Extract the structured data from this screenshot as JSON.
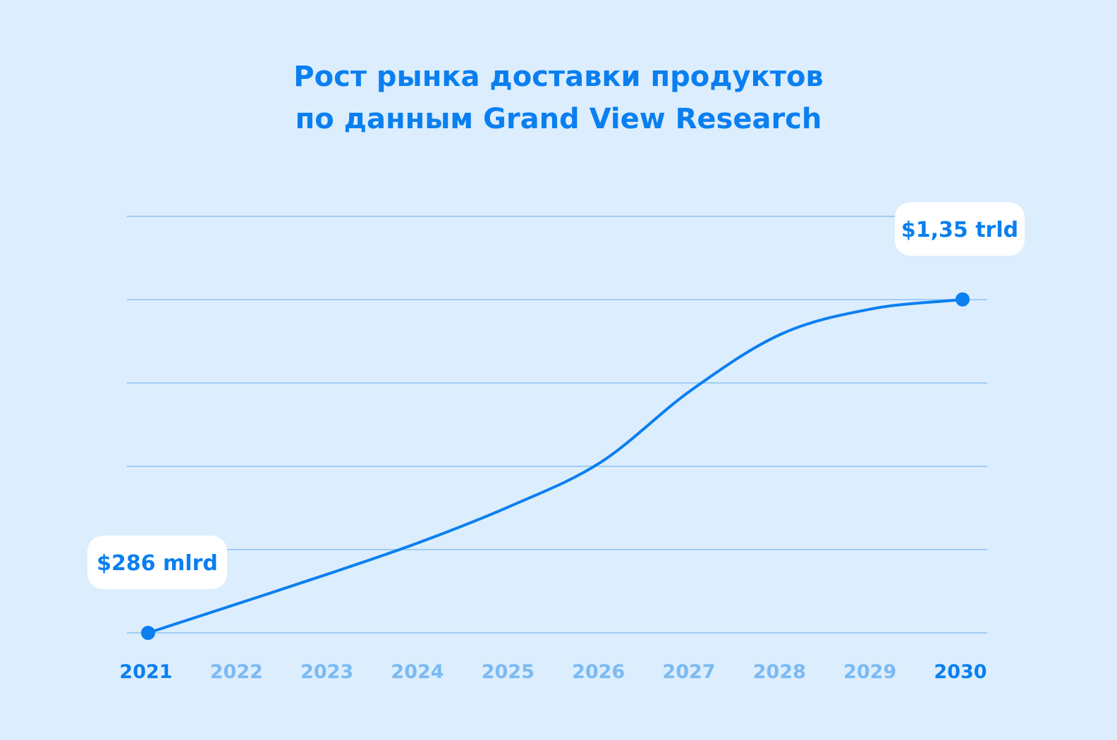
{
  "chart_data": {
    "type": "line",
    "title": [
      "Рост рынка доставки продуктов",
      "по данным Grand View Research"
    ],
    "xlabel": "",
    "ylabel": "",
    "categories": [
      "2021",
      "2022",
      "2023",
      "2024",
      "2025",
      "2026",
      "2027",
      "2028",
      "2029",
      "2030"
    ],
    "highlighted_categories": [
      "2021",
      "2030"
    ],
    "series": [
      {
        "values": [
          286,
          380,
          475,
          575,
          690,
          830,
          1060,
          1240,
          1320,
          1350
        ]
      }
    ],
    "y_unit": "$ mlrd",
    "ylim": [
      286,
      1615
    ],
    "grid": true,
    "annotations": [
      {
        "category": "2021",
        "value": 286,
        "label": "$286 mlrd"
      },
      {
        "category": "2030",
        "value": 1350,
        "label": "$1,35 trld"
      }
    ],
    "colors": {
      "background": "#dcedfd",
      "line": "#0a7ff0",
      "grid": "#8cc2f2",
      "tick_highlight": "#0a7ff0",
      "tick_muted": "#7bbaf3",
      "callout_bg": "#ffffff"
    }
  }
}
